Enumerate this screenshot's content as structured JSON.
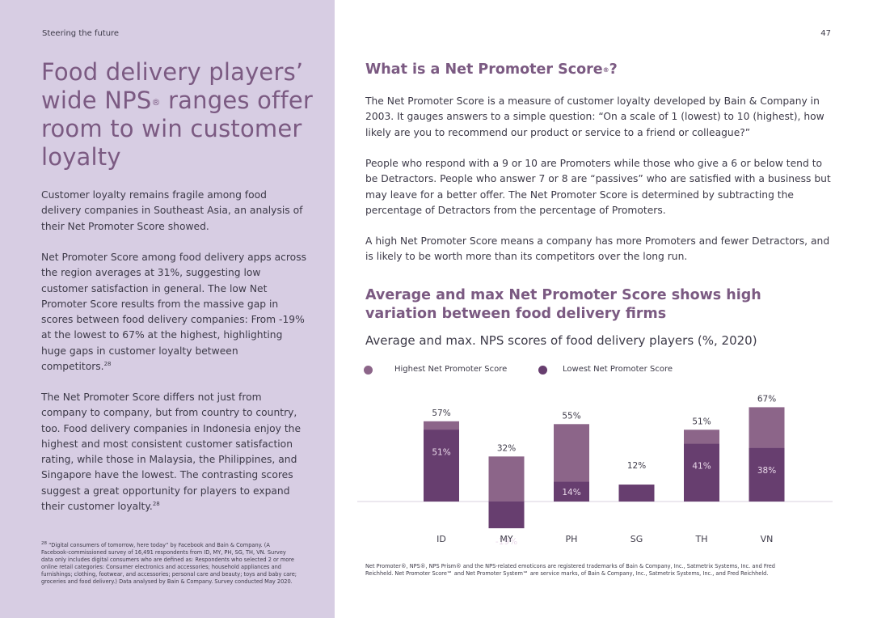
{
  "header": {
    "running_title": "Steering the future",
    "page_number": "47"
  },
  "left": {
    "title_pre": "Food delivery players’ wide NPS",
    "title_reg": "®",
    "title_post": " ranges offer room to win customer loyalty",
    "p1": "Customer loyalty remains fragile among food delivery companies in Southeast Asia, an analysis of their Net Promoter Score showed.",
    "p2": "Net Promoter Score among food delivery apps across the region averages at 31%, suggesting low customer satisfaction in general. The low Net Promoter Score results from the massive gap in scores between food delivery companies: From -19% at the lowest to 67% at the highest, highlighting huge gaps in customer loyalty between competitors.",
    "p2_ref": "28",
    "p3": "The Net Promoter Score differs not just from company to company, but from country to country, too. Food delivery companies in Indonesia enjoy the highest and most consistent customer satisfaction rating, while those in Malaysia, the Philippines, and Singapore have the lowest. The contrasting scores suggest a great opportunity for players to expand their customer loyalty.",
    "p3_ref": "28",
    "footnote_ref": "28",
    "footnote": " “Digital consumers of tomorrow, here today” by Facebook and Bain & Company. (A Facebook-commissioned survey of 16,491 respondents from ID, MY, PH, SG, TH, VN. Survey data only includes digital consumers who are defined as: Respondents who selected 2 or more online retail categories: Consumer electronics and accessories; household appliances and furnishings; clothing, footwear, and accessories; personal care and beauty; toys and baby care; groceries and food delivery.) Data analysed by Bain & Company. Survey conducted May 2020."
  },
  "right": {
    "nps_heading": "What is a Net Promoter Score",
    "nps_heading_reg": "®",
    "nps_heading_end": "?",
    "p1": "The Net Promoter Score is a measure of customer loyalty developed by Bain & Company in 2003. It gauges answers to a simple question: “On a scale of 1 (lowest) to 10 (highest), how likely are you to recommend our product or service to a friend or colleague?”",
    "p2": "People who respond with a 9 or 10 are Promoters while those who give a 6 or below tend to be Detractors. People who answer 7 or 8 are “passives” who are satisfied with a business but may leave for a better offer. The Net Promoter Score is determined by subtracting the percentage of Detractors from the percentage of Promoters.",
    "p3": "A high Net Promoter Score means a company has more Promoters and fewer Detractors, and is likely to be worth more than its competitors over the long run.",
    "chart_heading": "Average and max Net Promoter Score shows high variation between food delivery firms",
    "chart_subtitle": "Average and max. NPS scores of food delivery players (%, 2020)",
    "trademark": "Net Promoter®, NPS®, NPS Prism® and the NPS-related emoticons are registered trademarks of Bain & Company, Inc., Satmetrix Systems, Inc. and Fred Reichheld. Net Promoter Score℠ and Net Promoter System℠ are service marks, of Bain & Company, Inc., Satmetrix Systems, Inc., and Fred Reichheld."
  },
  "chart_data": {
    "type": "bar",
    "title": "Average and max. NPS scores of food delivery players (%, 2020)",
    "categories": [
      "ID",
      "MY",
      "PH",
      "SG",
      "TH",
      "VN"
    ],
    "series": [
      {
        "name": "Highest Net Promoter Score",
        "values": [
          57,
          32,
          55,
          12,
          51,
          67
        ],
        "labels": [
          "57%",
          "32%",
          "55%",
          "12%",
          "51%",
          "67%"
        ],
        "color": "#8c6589"
      },
      {
        "name": "Lowest Net Promoter Score",
        "values": [
          51,
          -19,
          14,
          12,
          41,
          38
        ],
        "labels": [
          "51%",
          "-19%",
          "14%",
          "",
          "41%",
          "38%"
        ],
        "color": "#673e6f"
      }
    ],
    "ylim": [
      -25,
      75
    ],
    "grid": false,
    "legend": "top-left",
    "colors": {
      "highest": "#8c6589",
      "lowest": "#673e6f",
      "axis": "#e6e1ea",
      "label": "#3d3a48",
      "label_on_bar": "#ead9ea"
    }
  },
  "colors": {
    "left_panel": "#d7cde3",
    "accent": "#7b5a82",
    "text": "#3d3a48"
  }
}
